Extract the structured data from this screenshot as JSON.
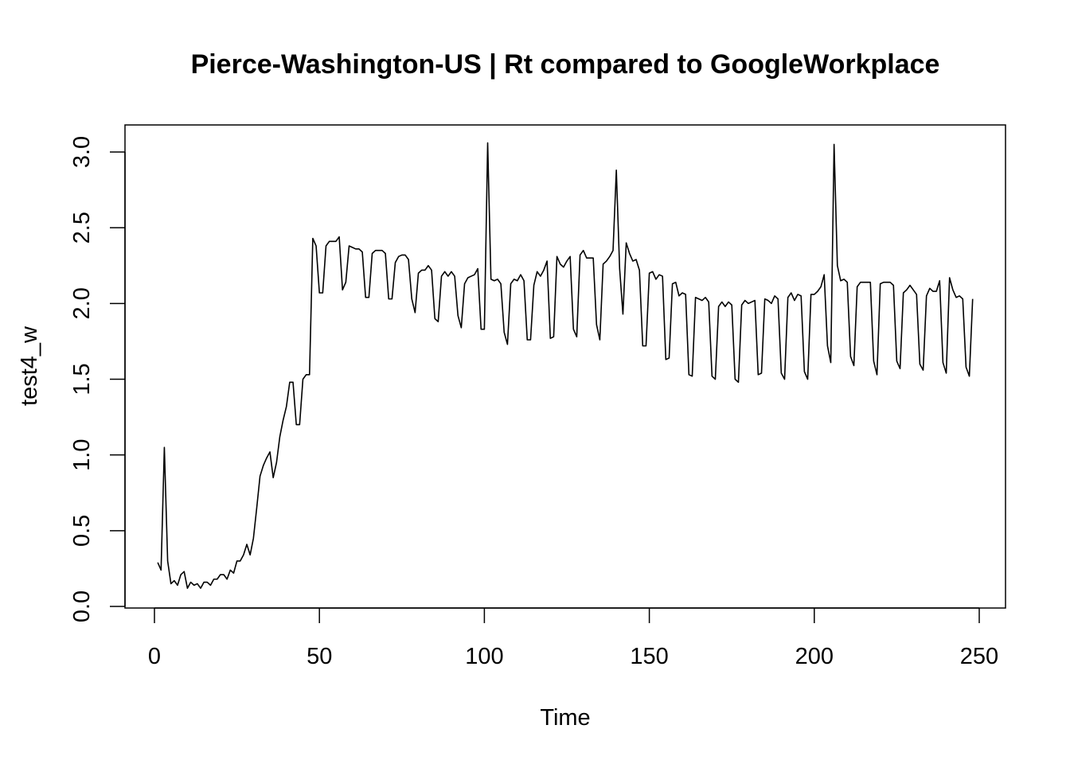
{
  "chart_data": {
    "type": "line",
    "title": "Pierce-Washington-US | Rt compared to GoogleWorkplace",
    "xlabel": "Time",
    "ylabel": "test4_w",
    "xlim": [
      1,
      248
    ],
    "ylim": [
      0,
      3.05
    ],
    "x_ticks": [
      0,
      50,
      100,
      150,
      200,
      250
    ],
    "y_ticks": [
      0.0,
      0.5,
      1.0,
      1.5,
      2.0,
      2.5,
      3.0
    ],
    "x_tick_labels": [
      "0",
      "50",
      "100",
      "150",
      "200",
      "250"
    ],
    "y_tick_labels": [
      "0.0",
      "0.5",
      "1.0",
      "1.5",
      "2.0",
      "2.5",
      "3.0"
    ],
    "grid": false,
    "line_color": "#000000",
    "series": [
      {
        "x_start": 1,
        "values": [
          0.29,
          0.24,
          1.05,
          0.3,
          0.15,
          0.17,
          0.14,
          0.21,
          0.23,
          0.12,
          0.16,
          0.14,
          0.15,
          0.12,
          0.16,
          0.16,
          0.14,
          0.18,
          0.18,
          0.21,
          0.21,
          0.18,
          0.24,
          0.22,
          0.3,
          0.3,
          0.34,
          0.41,
          0.34,
          0.45,
          0.65,
          0.86,
          0.93,
          0.98,
          1.02,
          0.85,
          0.95,
          1.12,
          1.23,
          1.32,
          1.48,
          1.48,
          1.2,
          1.2,
          1.5,
          1.53,
          1.53,
          2.43,
          2.38,
          2.07,
          2.07,
          2.38,
          2.41,
          2.41,
          2.41,
          2.44,
          2.09,
          2.14,
          2.38,
          2.37,
          2.36,
          2.36,
          2.34,
          2.04,
          2.04,
          2.33,
          2.35,
          2.35,
          2.35,
          2.33,
          2.03,
          2.03,
          2.27,
          2.31,
          2.32,
          2.32,
          2.29,
          2.03,
          1.94,
          2.2,
          2.22,
          2.22,
          2.25,
          2.22,
          1.9,
          1.88,
          2.18,
          2.21,
          2.18,
          2.21,
          2.18,
          1.92,
          1.84,
          2.13,
          2.17,
          2.18,
          2.19,
          2.23,
          1.83,
          1.83,
          3.06,
          2.16,
          2.15,
          2.16,
          2.13,
          1.81,
          1.73,
          2.13,
          2.16,
          2.15,
          2.19,
          2.15,
          1.76,
          1.76,
          2.12,
          2.21,
          2.18,
          2.22,
          2.28,
          1.77,
          1.78,
          2.31,
          2.26,
          2.24,
          2.28,
          2.31,
          1.83,
          1.78,
          2.32,
          2.35,
          2.3,
          2.3,
          2.3,
          1.86,
          1.76,
          2.26,
          2.28,
          2.31,
          2.35,
          2.88,
          2.23,
          1.93,
          2.4,
          2.33,
          2.28,
          2.29,
          2.22,
          1.72,
          1.72,
          2.2,
          2.21,
          2.16,
          2.19,
          2.18,
          1.63,
          1.64,
          2.13,
          2.14,
          2.05,
          2.07,
          2.06,
          1.53,
          1.52,
          2.04,
          2.03,
          2.02,
          2.04,
          2.01,
          1.52,
          1.5,
          1.98,
          2.01,
          1.98,
          2.01,
          1.99,
          1.5,
          1.48,
          1.99,
          2.02,
          2.0,
          2.01,
          2.02,
          1.53,
          1.54,
          2.03,
          2.02,
          2.0,
          2.05,
          2.03,
          1.54,
          1.5,
          2.04,
          2.07,
          2.02,
          2.06,
          2.05,
          1.55,
          1.5,
          2.06,
          2.06,
          2.08,
          2.11,
          2.19,
          1.72,
          1.61,
          3.05,
          2.25,
          2.15,
          2.16,
          2.14,
          1.65,
          1.59,
          2.11,
          2.14,
          2.14,
          2.14,
          2.14,
          1.62,
          1.53,
          2.13,
          2.14,
          2.14,
          2.14,
          2.12,
          1.62,
          1.57,
          2.07,
          2.09,
          2.12,
          2.09,
          2.06,
          1.6,
          1.56,
          2.05,
          2.1,
          2.08,
          2.08,
          2.15,
          1.61,
          1.54,
          2.17,
          2.09,
          2.04,
          2.05,
          2.03,
          1.58,
          1.52,
          2.03
        ]
      }
    ]
  }
}
